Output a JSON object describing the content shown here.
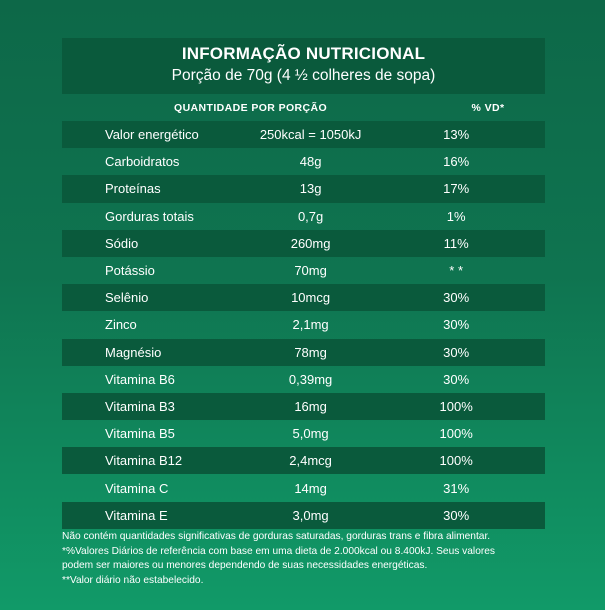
{
  "header": {
    "title": "INFORMAÇÃO NUTRICIONAL",
    "subtitle": "Porção de 70g (4 ½ colheres de sopa)"
  },
  "table": {
    "col_quantity": "QUANTIDADE POR PORÇÃO",
    "col_vd": "% VD*",
    "rows": [
      {
        "name": "Valor energético",
        "amount": "250kcal = 1050kJ",
        "vd": "13%"
      },
      {
        "name": "Carboidratos",
        "amount": "48g",
        "vd": "16%"
      },
      {
        "name": "Proteínas",
        "amount": "13g",
        "vd": "17%"
      },
      {
        "name": "Gorduras totais",
        "amount": "0,7g",
        "vd": "1%"
      },
      {
        "name": "Sódio",
        "amount": "260mg",
        "vd": "11%"
      },
      {
        "name": "Potássio",
        "amount": "70mg",
        "vd": "* *"
      },
      {
        "name": "Selênio",
        "amount": "10mcg",
        "vd": "30%"
      },
      {
        "name": "Zinco",
        "amount": "2,1mg",
        "vd": "30%"
      },
      {
        "name": "Magnésio",
        "amount": "78mg",
        "vd": "30%"
      },
      {
        "name": "Vitamina B6",
        "amount": "0,39mg",
        "vd": "30%"
      },
      {
        "name": "Vitamina B3",
        "amount": "16mg",
        "vd": "100%"
      },
      {
        "name": "Vitamina B5",
        "amount": "5,0mg",
        "vd": "100%"
      },
      {
        "name": "Vitamina B12",
        "amount": "2,4mcg",
        "vd": "100%"
      },
      {
        "name": "Vitamina C",
        "amount": "14mg",
        "vd": "31%"
      },
      {
        "name": "Vitamina E",
        "amount": "3,0mg",
        "vd": "30%"
      }
    ]
  },
  "footnotes": [
    "Não contém quantidades significativas de gorduras saturadas, gorduras trans e fibra alimentar.",
    "*%Valores Diários de referência com base em uma dieta de 2.000kcal ou 8.400kJ. Seus valores",
    "podem ser maiores ou menores dependendo de suas necessidades energéticas.",
    "**Valor diário não estabelecido."
  ],
  "colors": {
    "background_top": "#0d6848",
    "background_bottom": "#119a68",
    "dark_band": "#0a5a3c",
    "text": "#ffffff"
  }
}
